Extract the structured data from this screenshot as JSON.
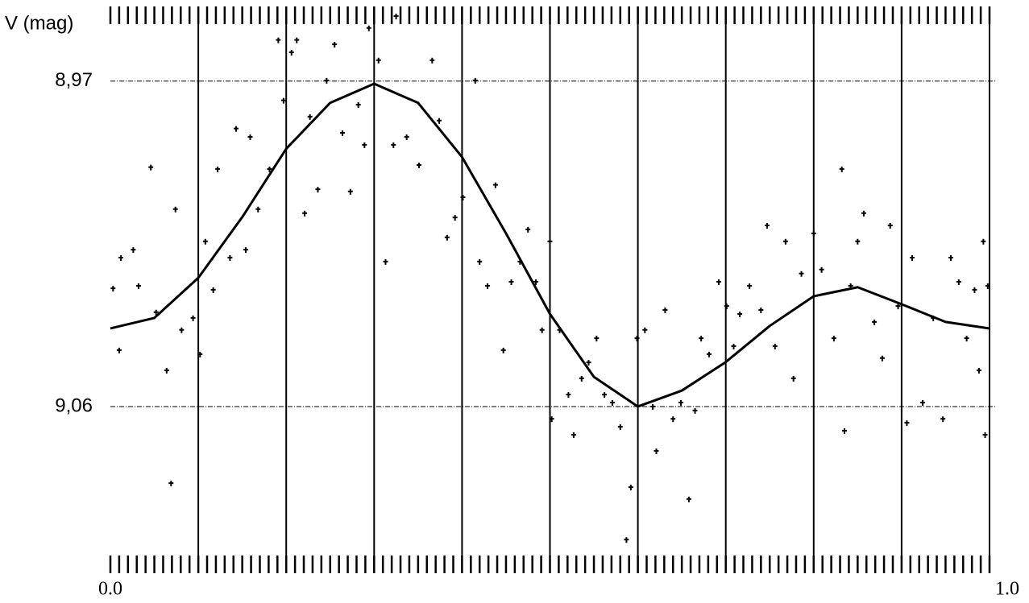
{
  "chart_data": {
    "type": "scatter",
    "y_label": "V (mag)",
    "xlim": [
      0,
      1
    ],
    "ylim": [
      8.95,
      9.107
    ],
    "y_inverted": true,
    "xticks": [
      {
        "value": 0,
        "label": "0.0"
      },
      {
        "value": 1,
        "label": "1.0"
      }
    ],
    "yticks": [
      {
        "value": 8.97,
        "label": "8,97"
      },
      {
        "value": 9.06,
        "label": "9,06"
      }
    ],
    "xgrid": [
      0.1,
      0.2,
      0.3,
      0.4,
      0.5,
      0.6,
      0.7,
      0.8,
      0.9,
      1.0
    ],
    "minor_xtick_step": 0.01,
    "series": [
      {
        "type": "scatter",
        "color": "#000000",
        "x": [
          0.003,
          0.012,
          0.01,
          0.026,
          0.032,
          0.046,
          0.052,
          0.064,
          0.069,
          0.074,
          0.081,
          0.094,
          0.102,
          0.108,
          0.117,
          0.122,
          0.136,
          0.143,
          0.154,
          0.159,
          0.168,
          0.181,
          0.191,
          0.197,
          0.206,
          0.212,
          0.221,
          0.227,
          0.236,
          0.246,
          0.255,
          0.264,
          0.273,
          0.282,
          0.289,
          0.294,
          0.305,
          0.313,
          0.322,
          0.325,
          0.337,
          0.351,
          0.366,
          0.374,
          0.383,
          0.392,
          0.401,
          0.415,
          0.42,
          0.429,
          0.438,
          0.447,
          0.456,
          0.466,
          0.475,
          0.484,
          0.491,
          0.5,
          0.502,
          0.511,
          0.521,
          0.527,
          0.536,
          0.544,
          0.553,
          0.562,
          0.571,
          0.58,
          0.587,
          0.592,
          0.599,
          0.608,
          0.617,
          0.621,
          0.631,
          0.64,
          0.649,
          0.658,
          0.665,
          0.672,
          0.681,
          0.692,
          0.701,
          0.709,
          0.716,
          0.727,
          0.74,
          0.747,
          0.756,
          0.768,
          0.777,
          0.786,
          0.8,
          0.809,
          0.823,
          0.832,
          0.835,
          0.842,
          0.85,
          0.857,
          0.869,
          0.878,
          0.887,
          0.896,
          0.906,
          0.912,
          0.924,
          0.936,
          0.947,
          0.956,
          0.965,
          0.974,
          0.983,
          0.988,
          0.993,
          0.995,
          0.998
        ],
        "values": [
          9.0273,
          9.0188,
          9.0444,
          9.0166,
          9.0266,
          8.9938,
          9.0339,
          9.05,
          9.0812,
          9.0054,
          9.0388,
          9.0355,
          9.0455,
          9.0143,
          9.0277,
          8.9943,
          9.0188,
          8.9831,
          9.0166,
          8.9854,
          9.0054,
          8.9943,
          8.9586,
          8.9753,
          8.962,
          8.9586,
          9.0065,
          8.9798,
          8.9999,
          8.9698,
          8.9598,
          8.9843,
          9.0005,
          8.9765,
          8.9876,
          8.9553,
          8.9642,
          9.0199,
          8.9876,
          8.952,
          8.9854,
          8.9932,
          8.9642,
          8.9809,
          9.0132,
          9.0077,
          9.0021,
          8.9698,
          9.0199,
          9.0266,
          8.9987,
          9.0444,
          9.0255,
          9.0199,
          9.011,
          9.0255,
          9.0388,
          9.0143,
          9.0634,
          9.0388,
          9.0567,
          9.0678,
          9.0522,
          9.0478,
          9.0411,
          9.0567,
          9.0589,
          9.0656,
          9.0968,
          9.0823,
          9.0411,
          9.0388,
          9.06,
          9.0723,
          9.0333,
          9.0634,
          9.0589,
          9.0856,
          9.0611,
          9.0411,
          9.0455,
          9.0255,
          9.0322,
          9.0433,
          9.0344,
          9.0266,
          9.0333,
          9.0099,
          9.0433,
          9.0143,
          9.0522,
          9.0232,
          9.0121,
          9.0221,
          9.0411,
          8.9943,
          9.0667,
          9.0266,
          9.0143,
          9.0065,
          9.0366,
          9.0466,
          9.0099,
          9.0322,
          9.0645,
          9.0188,
          9.0589,
          9.0355,
          9.0634,
          9.0188,
          9.0255,
          9.0411,
          9.0277,
          9.05,
          9.0143,
          9.0678,
          9.0266
        ]
      },
      {
        "type": "line",
        "color": "#000000",
        "x": [
          0,
          0.05,
          0.1,
          0.15,
          0.2,
          0.25,
          0.3,
          0.35,
          0.4,
          0.45,
          0.5,
          0.55,
          0.6,
          0.65,
          0.7,
          0.75,
          0.8,
          0.85,
          0.9,
          0.95,
          1.0
        ],
        "values": [
          9.0384,
          9.0355,
          9.0244,
          9.0076,
          8.9887,
          8.976,
          8.9707,
          8.976,
          8.991,
          9.0121,
          9.0344,
          9.0518,
          9.06,
          9.0556,
          9.0477,
          9.0377,
          9.0295,
          9.027,
          9.0317,
          9.0366,
          9.0384
        ]
      }
    ]
  }
}
